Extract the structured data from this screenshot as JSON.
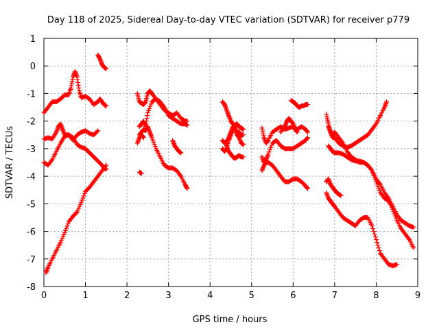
{
  "chart_data": {
    "type": "scatter",
    "title": "Day 118 of 2025, Sidereal Day-to-day VTEC variation (SDTVAR) for receiver p779",
    "xlabel": "GPS time / hours",
    "ylabel": "SDTVAR / TECUs",
    "xlim": [
      0,
      9
    ],
    "ylim": [
      -8,
      1
    ],
    "xticks": [
      0,
      1,
      2,
      3,
      4,
      5,
      6,
      7,
      8,
      9
    ],
    "yticks": [
      1,
      0,
      -1,
      -2,
      -3,
      -4,
      -5,
      -6,
      -7,
      -8
    ],
    "grid": true,
    "marker": "+",
    "color": "#ff0000",
    "series": [
      {
        "name": "s1",
        "x": [
          0.0,
          0.1,
          0.2,
          0.3,
          0.4,
          0.5,
          0.6,
          0.65,
          0.7,
          0.75,
          0.8,
          0.85,
          0.9,
          1.0,
          1.1,
          1.2,
          1.3,
          1.35,
          1.4,
          1.45,
          1.5
        ],
        "y": [
          -1.7,
          -1.5,
          -1.3,
          -1.3,
          -1.2,
          -1.05,
          -1.05,
          -0.8,
          -0.4,
          -0.2,
          -0.4,
          -0.9,
          -1.15,
          -1.1,
          -1.2,
          -1.4,
          -1.3,
          -1.2,
          -1.3,
          -1.4,
          -1.45
        ]
      },
      {
        "name": "s2",
        "x": [
          1.3,
          1.35,
          1.4,
          1.45,
          1.5
        ],
        "y": [
          0.4,
          0.25,
          0.05,
          -0.05,
          -0.1
        ]
      },
      {
        "name": "s3",
        "x": [
          0.0,
          0.1,
          0.2,
          0.3,
          0.35,
          0.4,
          0.45,
          0.5,
          0.6,
          0.7,
          0.8,
          0.9,
          1.0,
          1.1,
          1.2,
          1.3
        ],
        "y": [
          -2.65,
          -2.6,
          -2.65,
          -2.4,
          -2.2,
          -2.1,
          -2.3,
          -2.5,
          -2.5,
          -2.7,
          -2.5,
          -2.4,
          -2.35,
          -2.45,
          -2.5,
          -2.35
        ]
      },
      {
        "name": "s4",
        "x": [
          0.0,
          0.1,
          0.2,
          0.3,
          0.4,
          0.5,
          0.6,
          0.7,
          0.8,
          0.9,
          1.0,
          1.1,
          1.2,
          1.3,
          1.4,
          1.45,
          1.5
        ],
        "y": [
          -3.5,
          -3.6,
          -3.4,
          -3.1,
          -2.8,
          -2.55,
          -2.5,
          -2.6,
          -2.85,
          -2.95,
          -3.0,
          -3.15,
          -3.3,
          -3.45,
          -3.6,
          -3.7,
          -3.75
        ]
      },
      {
        "name": "s5",
        "x": [
          0.05,
          0.1,
          0.2,
          0.3,
          0.4,
          0.5,
          0.6,
          0.7,
          0.8,
          0.9,
          1.0,
          1.1,
          1.2,
          1.3,
          1.4,
          1.5
        ],
        "y": [
          -7.5,
          -7.3,
          -7.0,
          -6.7,
          -6.4,
          -6.05,
          -5.65,
          -5.45,
          -5.3,
          -4.95,
          -4.55,
          -4.4,
          -4.2,
          -4.0,
          -3.8,
          -3.6
        ]
      },
      {
        "name": "s6",
        "x": [
          2.25,
          2.3,
          2.35,
          2.4,
          2.45,
          2.5,
          2.55,
          2.6,
          2.7,
          2.8,
          2.9,
          3.0,
          3.1,
          3.2,
          3.3,
          3.4,
          3.45
        ],
        "y": [
          -1.0,
          -1.3,
          -1.35,
          -1.4,
          -1.3,
          -1.0,
          -0.9,
          -1.0,
          -1.2,
          -1.4,
          -1.6,
          -1.7,
          -1.8,
          -1.7,
          -1.9,
          -2.0,
          -2.0
        ]
      },
      {
        "name": "s7",
        "x": [
          2.3,
          2.35,
          2.4,
          2.45,
          2.5,
          2.6,
          2.7,
          2.8,
          2.9,
          3.0,
          3.1,
          3.2,
          3.3,
          3.4,
          3.45
        ],
        "y": [
          -2.2,
          -2.1,
          -2.0,
          -2.2,
          -1.7,
          -1.3,
          -1.2,
          -1.3,
          -1.5,
          -1.8,
          -1.9,
          -2.0,
          -2.1,
          -2.1,
          -2.15
        ]
      },
      {
        "name": "s8",
        "x": [
          2.3,
          2.35,
          2.4,
          2.45,
          2.5,
          2.55,
          2.6,
          2.7,
          2.8,
          2.9,
          3.0,
          3.1,
          3.2,
          3.3,
          3.4,
          3.45
        ],
        "y": [
          -2.5,
          -2.4,
          -2.3,
          -2.35,
          -2.2,
          -2.4,
          -2.6,
          -3.0,
          -3.3,
          -3.6,
          -3.7,
          -3.7,
          -3.8,
          -4.0,
          -4.3,
          -4.45
        ]
      },
      {
        "name": "s9",
        "x": [
          2.25,
          2.3,
          2.35,
          2.4
        ],
        "y": [
          -2.8,
          -2.6,
          -2.5,
          -2.6
        ]
      },
      {
        "name": "s10",
        "x": [
          2.3,
          2.35
        ],
        "y": [
          -3.85,
          -3.9
        ]
      },
      {
        "name": "s11",
        "x": [
          3.1,
          3.15,
          3.2,
          3.25,
          3.3
        ],
        "y": [
          -2.7,
          -2.9,
          -3.0,
          -3.1,
          -3.15
        ]
      },
      {
        "name": "s12",
        "x": [
          4.3,
          4.35,
          4.4,
          4.45,
          4.5,
          4.55,
          4.6,
          4.65,
          4.7,
          4.75,
          4.8
        ],
        "y": [
          -1.3,
          -1.4,
          -1.6,
          -1.8,
          -2.0,
          -2.1,
          -2.2,
          -2.4,
          -2.4,
          -2.5,
          -2.5
        ]
      },
      {
        "name": "s13",
        "x": [
          4.3,
          4.35,
          4.4,
          4.45,
          4.5,
          4.55,
          4.6,
          4.65,
          4.7,
          4.75,
          4.8
        ],
        "y": [
          -2.7,
          -2.8,
          -2.75,
          -2.6,
          -2.4,
          -2.2,
          -2.3,
          -2.5,
          -2.6,
          -2.8,
          -2.85
        ]
      },
      {
        "name": "s14",
        "x": [
          4.3,
          4.35,
          4.4,
          4.45,
          4.5,
          4.55,
          4.6,
          4.65,
          4.7,
          4.75,
          4.8
        ],
        "y": [
          -3.0,
          -3.1,
          -3.0,
          -2.7,
          -2.5,
          -2.3,
          -2.15,
          -2.1,
          -2.2,
          -2.25,
          -2.3
        ]
      },
      {
        "name": "s15",
        "x": [
          4.4,
          4.45,
          4.5,
          4.55,
          4.6,
          4.65,
          4.7,
          4.75,
          4.8
        ],
        "y": [
          -2.9,
          -3.1,
          -3.2,
          -3.3,
          -3.35,
          -3.3,
          -3.25,
          -3.3,
          -3.3
        ]
      },
      {
        "name": "s16",
        "x": [
          5.25,
          5.3,
          5.35,
          5.4,
          5.5,
          5.6,
          5.7,
          5.8,
          5.9,
          6.0,
          6.1,
          6.2,
          6.3,
          6.35
        ],
        "y": [
          -2.25,
          -2.6,
          -2.8,
          -2.7,
          -2.4,
          -2.3,
          -2.2,
          -2.3,
          -2.25,
          -2.2,
          -2.3,
          -2.2,
          -2.3,
          -2.4
        ]
      },
      {
        "name": "s17",
        "x": [
          5.25,
          5.3,
          5.35,
          5.4,
          5.5,
          5.6,
          5.7,
          5.8,
          5.9,
          6.0,
          6.1,
          6.2,
          6.3,
          6.35
        ],
        "y": [
          -3.3,
          -3.5,
          -3.4,
          -3.2,
          -2.8,
          -2.7,
          -2.9,
          -3.0,
          -3.0,
          -3.0,
          -2.9,
          -2.8,
          -2.7,
          -2.6
        ]
      },
      {
        "name": "s18",
        "x": [
          5.25,
          5.3,
          5.35,
          5.4,
          5.5,
          5.6,
          5.7,
          5.8,
          5.9,
          6.0,
          6.1,
          6.2,
          6.3,
          6.35
        ],
        "y": [
          -3.8,
          -3.6,
          -3.5,
          -3.5,
          -3.6,
          -3.8,
          -4.0,
          -4.2,
          -4.2,
          -4.1,
          -4.1,
          -4.2,
          -4.35,
          -4.45
        ]
      },
      {
        "name": "s19",
        "x": [
          5.7,
          5.8,
          5.85,
          5.9,
          5.95,
          6.0,
          6.05,
          6.1
        ],
        "y": [
          -2.4,
          -2.2,
          -2.0,
          -1.9,
          -2.0,
          -2.1,
          -2.3,
          -2.4
        ]
      },
      {
        "name": "s20",
        "x": [
          5.95,
          6.0,
          6.05,
          6.1,
          6.15,
          6.2,
          6.25,
          6.3,
          6.35
        ],
        "y": [
          -1.25,
          -1.3,
          -1.35,
          -1.45,
          -1.5,
          -1.45,
          -1.45,
          -1.4,
          -1.4
        ]
      },
      {
        "name": "s21",
        "x": [
          6.8,
          6.85,
          6.9,
          6.95,
          7.0,
          7.1,
          7.2,
          7.3,
          7.4,
          7.5,
          7.6,
          7.7,
          7.8,
          7.9,
          8.0,
          8.1,
          8.2,
          8.25
        ],
        "y": [
          -1.75,
          -2.1,
          -2.4,
          -2.6,
          -2.6,
          -2.8,
          -2.9,
          -2.95,
          -2.9,
          -2.8,
          -2.7,
          -2.6,
          -2.5,
          -2.3,
          -2.1,
          -1.8,
          -1.5,
          -1.3
        ]
      },
      {
        "name": "s22",
        "x": [
          6.85,
          6.9,
          6.95,
          7.0,
          7.1,
          7.2,
          7.3,
          7.4,
          7.5,
          7.6,
          7.7,
          7.8,
          7.9,
          8.0,
          8.1,
          8.2,
          8.3,
          8.4,
          8.5,
          8.6,
          8.7,
          8.8,
          8.9
        ],
        "y": [
          -2.9,
          -3.0,
          -3.1,
          -3.15,
          -3.15,
          -3.2,
          -3.3,
          -3.4,
          -3.45,
          -3.45,
          -3.5,
          -3.6,
          -3.8,
          -4.2,
          -4.6,
          -4.8,
          -4.9,
          -5.2,
          -5.6,
          -5.9,
          -6.1,
          -6.3,
          -6.6
        ]
      },
      {
        "name": "s23",
        "x": [
          6.85,
          6.9,
          6.95,
          7.0,
          7.1,
          7.2,
          7.3,
          7.4,
          7.5,
          7.6,
          7.7,
          7.8,
          7.9,
          8.0,
          8.1,
          8.2,
          8.3,
          8.4,
          8.5,
          8.6,
          8.7,
          8.8,
          8.9
        ],
        "y": [
          -2.2,
          -2.4,
          -2.5,
          -2.4,
          -2.6,
          -2.8,
          -3.1,
          -3.3,
          -3.4,
          -3.5,
          -3.5,
          -3.6,
          -3.8,
          -4.1,
          -4.3,
          -4.6,
          -4.8,
          -5.1,
          -5.4,
          -5.6,
          -5.7,
          -5.8,
          -5.85
        ]
      },
      {
        "name": "s24",
        "x": [
          6.8,
          6.85,
          6.9,
          6.95,
          7.0,
          7.1,
          7.2,
          7.3,
          7.4,
          7.5,
          7.6,
          7.7,
          7.8,
          7.9,
          8.0,
          8.1,
          8.2,
          8.3,
          8.4,
          8.5
        ],
        "y": [
          -4.6,
          -4.8,
          -4.9,
          -5.0,
          -5.1,
          -5.3,
          -5.5,
          -5.6,
          -5.7,
          -5.8,
          -5.6,
          -5.5,
          -5.5,
          -5.8,
          -6.3,
          -6.8,
          -7.0,
          -7.2,
          -7.25,
          -7.2
        ]
      },
      {
        "name": "s25",
        "x": [
          6.8,
          6.85,
          6.9,
          6.95,
          7.0,
          7.05,
          7.1,
          7.15
        ],
        "y": [
          -4.2,
          -4.1,
          -4.3,
          -4.4,
          -4.5,
          -4.6,
          -4.65,
          -4.7
        ]
      }
    ]
  }
}
